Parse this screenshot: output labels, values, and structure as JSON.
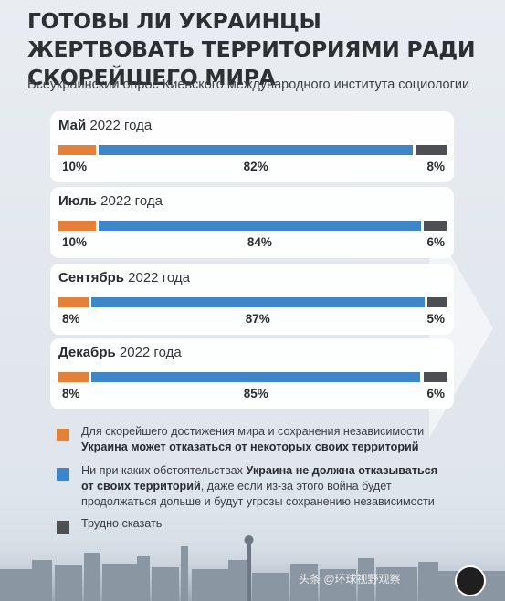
{
  "header": {
    "title": "ГОТОВЫ ЛИ УКРАИНЦЫ ЖЕРТВОВАТЬ ТЕРРИТОРИЯМИ РАДИ СКОРЕЙШЕГО МИРА",
    "subtitle": "Всеукраинский опрос Киевского международного института социологии"
  },
  "colors": {
    "concede": "#e3803a",
    "no_concede": "#3f86c8",
    "unsure": "#4d4f52"
  },
  "chart_data": {
    "type": "bar",
    "orientation": "horizontal-stacked",
    "series_order": [
      "concede",
      "no_concede",
      "unsure"
    ],
    "surveys": [
      {
        "label_bold": "Май",
        "label_year": "2022 года",
        "values": [
          10,
          82,
          8
        ],
        "texts": [
          "10%",
          "82%",
          "8%"
        ]
      },
      {
        "label_bold": "Июль",
        "label_year": "2022 года",
        "values": [
          10,
          84,
          6
        ],
        "texts": [
          "10%",
          "84%",
          "6%"
        ]
      },
      {
        "label_bold": "Сентябрь",
        "label_year": "2022 года",
        "values": [
          8,
          87,
          5
        ],
        "texts": [
          "8%",
          "87%",
          "5%"
        ]
      },
      {
        "label_bold": "Декабрь",
        "label_year": "2022 года",
        "values": [
          8,
          85,
          6
        ],
        "texts": [
          "8%",
          "85%",
          "6%"
        ]
      }
    ]
  },
  "legend": {
    "concede": {
      "line1": "Для скорейшего достижения мира и сохранения независимости",
      "line2_bold": "Украина может отказаться от некоторых своих территорий"
    },
    "no_concede": {
      "l1_a": "Ни при каких обстоятельствах ",
      "l1_b": "Украина не должна отказываться",
      "l2_a": "от своих территорий",
      "l2_b": ", даже если из-за этого война будет",
      "l3": "продолжаться дольше и будут угрозы сохранению независимости"
    },
    "unsure": {
      "text": "Трудно сказать"
    }
  },
  "watermark": {
    "text": "头条 @环球视野观察"
  }
}
